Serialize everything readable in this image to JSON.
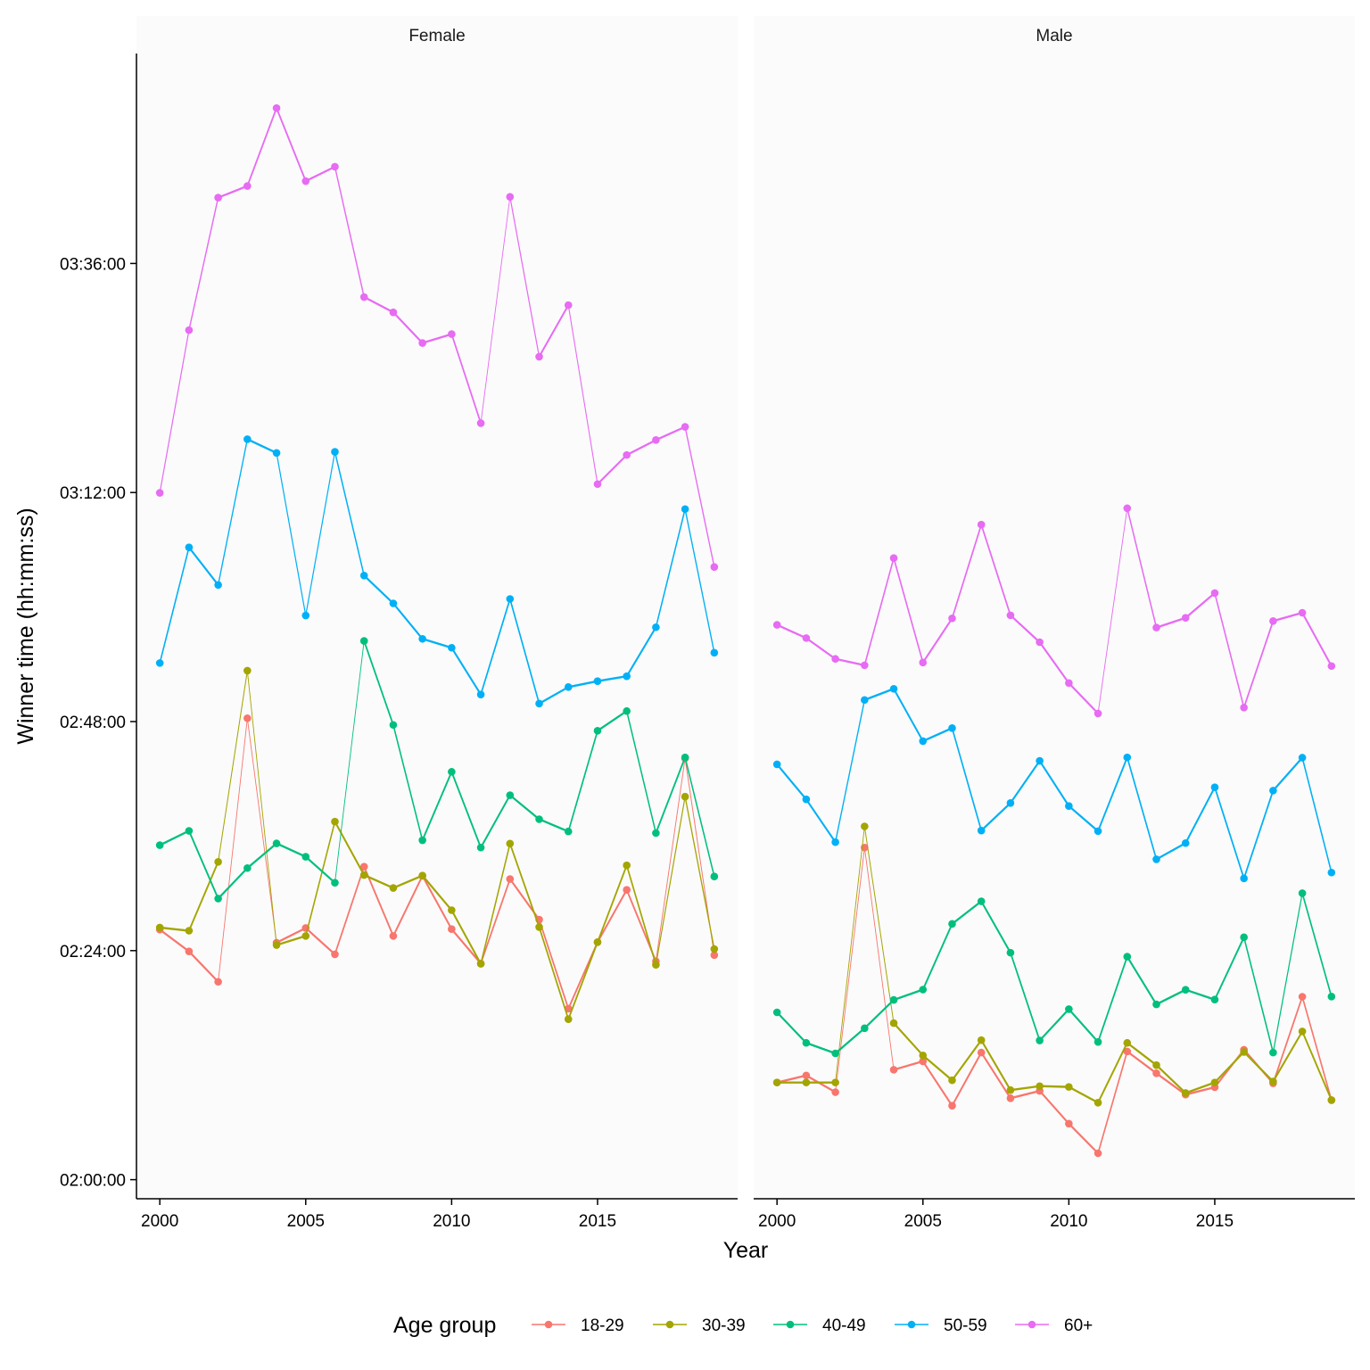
{
  "chart_data": {
    "type": "line",
    "facet_labels": [
      "Female",
      "Male"
    ],
    "xlabel": "Year",
    "ylabel": "Winner time (hh:mm:ss)",
    "x_ticks": [
      2000,
      2005,
      2010,
      2015
    ],
    "y_ticks": [
      "02:00:00",
      "02:24:00",
      "02:48:00",
      "03:12:00",
      "03:36:00"
    ],
    "y_tick_seconds": [
      7200,
      8640,
      10080,
      11520,
      12960
    ],
    "xlim": [
      1999.2,
      2019.8
    ],
    "ylim_seconds": [
      7080,
      14280
    ],
    "legend_title": "Age group",
    "legend_position": "bottom",
    "x": [
      2000,
      2001,
      2002,
      2003,
      2004,
      2005,
      2006,
      2007,
      2008,
      2009,
      2010,
      2011,
      2012,
      2013,
      2014,
      2015,
      2016,
      2017,
      2018,
      2019
    ],
    "series": [
      {
        "name": "18-29",
        "color": "#F8766D",
        "Female": [
          8772,
          8635,
          8444,
          10101,
          8690,
          8782,
          8617,
          9168,
          8732,
          9110,
          8775,
          8559,
          9090,
          8835,
          8275,
          8693,
          9022,
          8573,
          9849,
          8612
        ],
        "Male": [
          7811,
          7855,
          7750,
          9288,
          7891,
          7944,
          7665,
          7999,
          7712,
          7758,
          7552,
          7366,
          8006,
          7869,
          7735,
          7781,
          8017,
          7806,
          8350,
          7700
        ]
      },
      {
        "name": "30-39",
        "color": "#A3A500",
        "Female": [
          8785,
          8765,
          9198,
          10400,
          8675,
          8732,
          9451,
          9115,
          9034,
          9112,
          8894,
          8557,
          9313,
          8788,
          8209,
          8693,
          9176,
          8551,
          9608,
          8650
        ],
        "Male": [
          7811,
          7811,
          7811,
          9421,
          8184,
          7981,
          7825,
          8077,
          7763,
          7788,
          7783,
          7684,
          8060,
          7920,
          7745,
          7811,
          8003,
          7817,
          8132,
          7700
        ]
      },
      {
        "name": "40-49",
        "color": "#00BF7D",
        "Female": [
          9303,
          9393,
          8967,
          9159,
          9314,
          9230,
          9067,
          10587,
          10059,
          9334,
          9764,
          9288,
          9617,
          9466,
          9389,
          10022,
          10146,
          9379,
          9855,
          9106
        ],
        "Male": [
          8252,
          8060,
          7994,
          8152,
          8330,
          8395,
          8808,
          8950,
          8627,
          8075,
          8272,
          8066,
          8602,
          8302,
          8394,
          8332,
          8724,
          7999,
          9001,
          8351
        ]
      },
      {
        "name": "50-59",
        "color": "#00B0F6",
        "Female": [
          10448,
          11175,
          10939,
          11855,
          11769,
          10747,
          11776,
          10998,
          10823,
          10600,
          10544,
          10250,
          10851,
          10193,
          10297,
          10334,
          10365,
          10673,
          11416,
          10513
        ],
        "Male": [
          9811,
          9591,
          9322,
          10216,
          10286,
          9957,
          10039,
          9395,
          9568,
          9833,
          9549,
          9391,
          9855,
          9214,
          9316,
          9667,
          9094,
          9646,
          9853,
          9131
        ]
      },
      {
        "name": "60+",
        "color": "#E76BF3",
        "Female": [
          11518,
          12541,
          13374,
          13447,
          13937,
          13478,
          13568,
          12749,
          12653,
          12460,
          12516,
          11956,
          13379,
          12374,
          12698,
          11573,
          11756,
          11850,
          11933,
          11052
        ],
        "Male": [
          10688,
          10605,
          10474,
          10434,
          11108,
          10451,
          10729,
          11318,
          10748,
          10579,
          10322,
          10131,
          11421,
          10671,
          10732,
          10888,
          10168,
          10712,
          10764,
          10429
        ]
      }
    ]
  }
}
